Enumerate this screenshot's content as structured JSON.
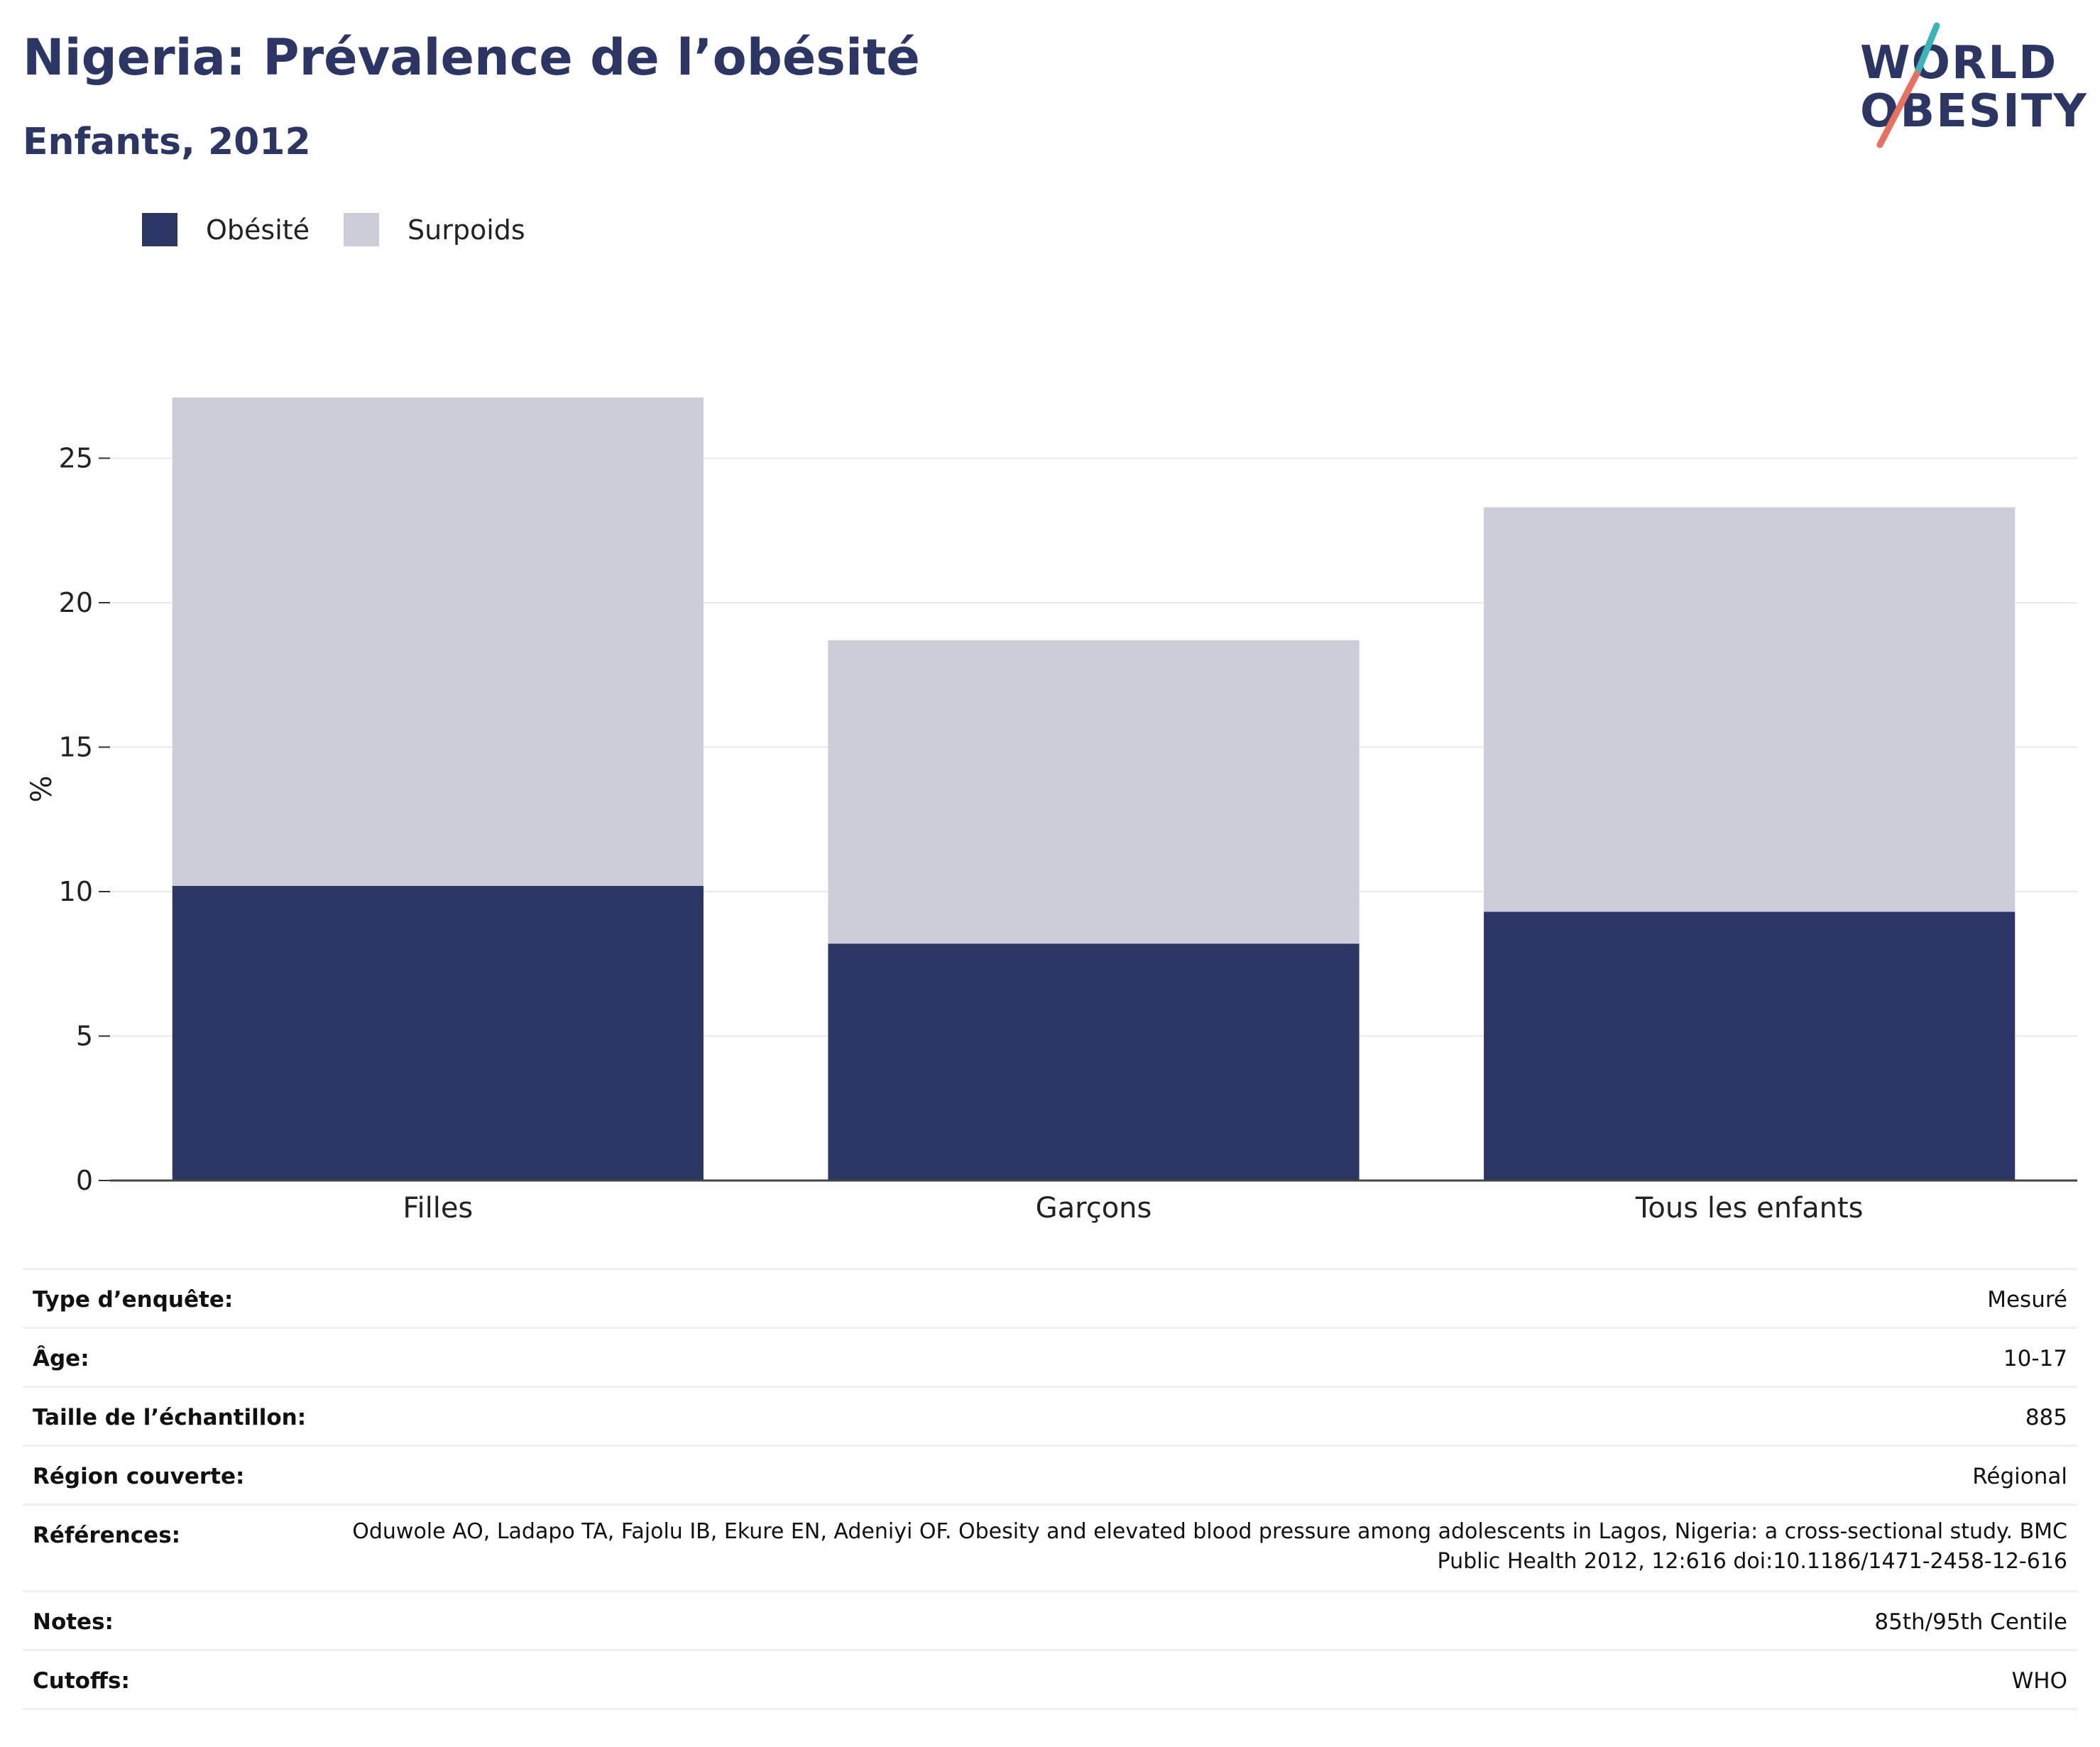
{
  "header": {
    "title": "Nigeria: Prévalence de l’obésité",
    "subtitle": "Enfants, 2012"
  },
  "logo": {
    "line1": "WORLD",
    "line2": "OBESITY",
    "colors": {
      "text": "#2b3664",
      "slash_top": "#3ab4b8",
      "slash_bottom": "#e8705f"
    }
  },
  "legend": [
    {
      "label": "Obésité",
      "color": "#2b3664"
    },
    {
      "label": "Surpoids",
      "color": "#cbcdd8"
    }
  ],
  "chart_data": {
    "type": "bar",
    "stacked": true,
    "categories": [
      "Filles",
      "Garçons",
      "Tous les enfants"
    ],
    "series": [
      {
        "name": "Obésité",
        "values": [
          10.2,
          8.2,
          9.3
        ],
        "color": "#2b3664"
      },
      {
        "name": "Surpoids",
        "values": [
          16.9,
          10.5,
          14.0
        ],
        "color": "#cbcdd8"
      }
    ],
    "ylabel": "%",
    "yticks": [
      0,
      5,
      10,
      15,
      20,
      25
    ],
    "ylim": [
      0,
      27.1
    ],
    "grid": true,
    "legend_position": "top-left"
  },
  "info_table": [
    {
      "key": "Type d’enquête:",
      "value": "Mesuré"
    },
    {
      "key": "Âge:",
      "value": "10-17"
    },
    {
      "key": "Taille de l’échantillon:",
      "value": "885"
    },
    {
      "key": "Région couverte:",
      "value": "Régional"
    },
    {
      "key": "Références:",
      "value": "Oduwole AO, Ladapo TA, Fajolu IB, Ekure EN, Adeniyi OF. Obesity and elevated blood pressure among adolescents in Lagos, Nigeria: a cross-sectional study. BMC Public Health 2012, 12:616 doi:10.1186/1471-2458-12-616"
    },
    {
      "key": "Notes:",
      "value": "85th/95th Centile"
    },
    {
      "key": "Cutoffs:",
      "value": "WHO"
    }
  ]
}
